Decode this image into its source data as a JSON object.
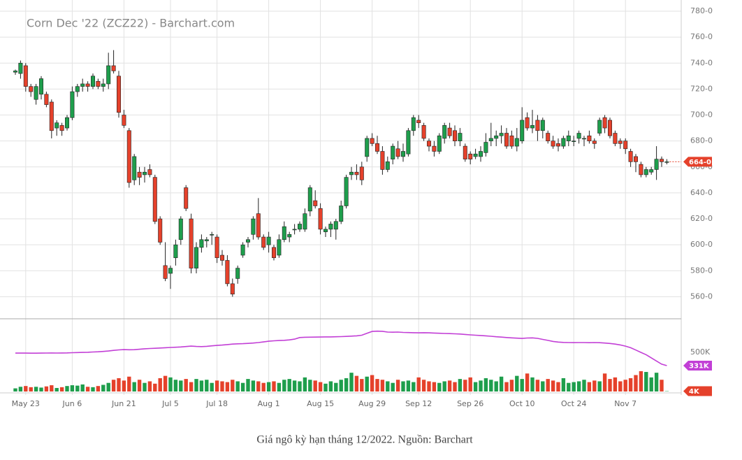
{
  "chart_data": {
    "type": "candlestick",
    "title": "Corn Dec '22 (ZCZ22) - Barchart.com",
    "categories": [
      null,
      null,
      "May 23",
      null,
      null,
      null,
      null,
      null,
      null,
      null,
      null,
      "Jun 6",
      null,
      null,
      null,
      null,
      null,
      null,
      null,
      null,
      null,
      "Jun 21",
      null,
      null,
      null,
      null,
      null,
      null,
      null,
      null,
      "Jul 5",
      null,
      null,
      null,
      null,
      null,
      null,
      null,
      null,
      "Jul 18",
      null,
      null,
      null,
      null,
      null,
      null,
      null,
      null,
      null,
      "Aug 1",
      null,
      null,
      null,
      null,
      null,
      null,
      null,
      null,
      null,
      "Aug 15",
      null,
      null,
      null,
      null,
      null,
      null,
      null,
      null,
      null,
      "Aug 29",
      null,
      null,
      null,
      null,
      null,
      null,
      null,
      null,
      "Sep 12",
      null,
      null,
      null,
      null,
      null,
      null,
      null,
      null,
      null,
      "Sep 26",
      null,
      null,
      null,
      null,
      null,
      null,
      null,
      null,
      null,
      "Oct 10",
      null,
      null,
      null,
      null,
      null,
      null,
      null,
      null,
      null,
      "Oct 24",
      null,
      null,
      null,
      null,
      null,
      null,
      null,
      null,
      null,
      "Nov 7",
      null,
      null,
      null,
      null,
      null,
      null,
      null,
      null
    ],
    "open": [
      733,
      732,
      738,
      722,
      712,
      716,
      716,
      710,
      690,
      692,
      690,
      698,
      718,
      722,
      724,
      722,
      726,
      722,
      724,
      738,
      730,
      700,
      688,
      650,
      656,
      654,
      658,
      652,
      620,
      584,
      578,
      590,
      604,
      644,
      620,
      582,
      598,
      603,
      608,
      606,
      592,
      588,
      570,
      574,
      592,
      602,
      608,
      624,
      606,
      600,
      598,
      592,
      604,
      606,
      612,
      612,
      612,
      626,
      634,
      628,
      610,
      612,
      612,
      618,
      630,
      654,
      656,
      660,
      668,
      682,
      678,
      672,
      658,
      666,
      674,
      668,
      670,
      688,
      696,
      692,
      680,
      676,
      672,
      682,
      690,
      688,
      680,
      676,
      670,
      668,
      668,
      671,
      680,
      682,
      684,
      686,
      684,
      676,
      680,
      698,
      690,
      696,
      688,
      686,
      680,
      678,
      676,
      680,
      680,
      682,
      682,
      684,
      680,
      686,
      698,
      696,
      686,
      680,
      680,
      672,
      668,
      662,
      654,
      656,
      658,
      666,
      664
    ],
    "high": [
      735,
      742,
      740,
      724,
      724,
      730,
      718,
      712,
      696,
      694,
      700,
      722,
      724,
      728,
      726,
      732,
      728,
      728,
      748,
      750,
      734,
      704,
      690,
      670,
      660,
      660,
      662,
      654,
      622,
      602,
      584,
      604,
      622,
      646,
      624,
      602,
      608,
      606,
      610,
      608,
      596,
      592,
      574,
      584,
      602,
      606,
      622,
      636,
      608,
      610,
      600,
      608,
      618,
      610,
      616,
      618,
      628,
      646,
      642,
      632,
      614,
      618,
      620,
      634,
      654,
      660,
      662,
      664,
      684,
      686,
      684,
      676,
      668,
      678,
      680,
      678,
      690,
      700,
      700,
      694,
      682,
      680,
      686,
      694,
      694,
      692,
      690,
      678,
      672,
      674,
      676,
      686,
      694,
      688,
      692,
      690,
      688,
      690,
      706,
      702,
      704,
      700,
      698,
      688,
      684,
      682,
      684,
      688,
      684,
      688,
      684,
      688,
      682,
      698,
      700,
      698,
      688,
      682,
      682,
      674,
      670,
      664,
      660,
      660,
      676,
      668,
      666
    ],
    "low": [
      731,
      728,
      718,
      714,
      708,
      712,
      706,
      682,
      684,
      684,
      688,
      696,
      714,
      718,
      718,
      720,
      720,
      718,
      720,
      732,
      698,
      690,
      644,
      646,
      646,
      648,
      652,
      616,
      600,
      572,
      566,
      584,
      600,
      626,
      578,
      578,
      594,
      598,
      600,
      586,
      584,
      568,
      560,
      570,
      590,
      598,
      604,
      604,
      596,
      594,
      588,
      590,
      602,
      602,
      608,
      610,
      610,
      622,
      628,
      608,
      606,
      606,
      604,
      616,
      628,
      650,
      650,
      646,
      664,
      676,
      670,
      654,
      656,
      662,
      666,
      664,
      668,
      684,
      690,
      680,
      672,
      668,
      670,
      678,
      682,
      676,
      676,
      664,
      662,
      666,
      664,
      668,
      676,
      676,
      678,
      674,
      674,
      672,
      678,
      688,
      686,
      680,
      682,
      678,
      674,
      672,
      674,
      676,
      676,
      678,
      676,
      678,
      674,
      684,
      686,
      682,
      676,
      674,
      670,
      660,
      656,
      652,
      652,
      654,
      650,
      660,
      662
    ],
    "close": [
      734,
      740,
      722,
      718,
      722,
      728,
      708,
      688,
      694,
      688,
      698,
      718,
      722,
      724,
      722,
      730,
      722,
      724,
      738,
      734,
      702,
      692,
      648,
      668,
      652,
      656,
      654,
      618,
      602,
      574,
      582,
      600,
      620,
      628,
      582,
      598,
      604,
      604,
      608,
      590,
      588,
      570,
      562,
      582,
      600,
      604,
      620,
      606,
      598,
      606,
      590,
      604,
      614,
      608,
      612,
      616,
      624,
      644,
      630,
      612,
      612,
      616,
      618,
      630,
      652,
      656,
      654,
      650,
      682,
      678,
      672,
      658,
      664,
      676,
      668,
      672,
      688,
      698,
      694,
      682,
      676,
      672,
      684,
      692,
      684,
      680,
      686,
      666,
      666,
      670,
      672,
      679,
      682,
      684,
      686,
      676,
      676,
      682,
      696,
      690,
      692,
      688,
      696,
      680,
      676,
      676,
      682,
      684,
      680,
      686,
      682,
      680,
      678,
      696,
      690,
      684,
      678,
      678,
      674,
      664,
      664,
      654,
      658,
      658,
      666,
      664,
      664
    ],
    "up_color": "#1e9e4c",
    "down_color": "#e5412b",
    "ylim": [
      543,
      780
    ],
    "yticks": [
      {
        "value": 560,
        "label": "560-0"
      },
      {
        "value": 580,
        "label": "580-0"
      },
      {
        "value": 600,
        "label": "600-0"
      },
      {
        "value": 620,
        "label": "620-0"
      },
      {
        "value": 640,
        "label": "640-0"
      },
      {
        "value": 660,
        "label": "660-0"
      },
      {
        "value": 680,
        "label": "680-0"
      },
      {
        "value": 700,
        "label": "700-0"
      },
      {
        "value": 720,
        "label": "720-0"
      },
      {
        "value": 740,
        "label": "740-0"
      },
      {
        "value": 760,
        "label": "760-0"
      },
      {
        "value": 780,
        "label": "780-0"
      }
    ],
    "price_marker": {
      "value": 664,
      "label": "664-0"
    },
    "volume": [
      40000,
      60000,
      70000,
      55000,
      60000,
      50000,
      65000,
      80000,
      45000,
      55000,
      70000,
      80000,
      75000,
      90000,
      60000,
      55000,
      70000,
      85000,
      110000,
      150000,
      170000,
      140000,
      190000,
      120000,
      150000,
      110000,
      130000,
      100000,
      170000,
      200000,
      180000,
      150000,
      140000,
      160000,
      120000,
      160000,
      140000,
      150000,
      110000,
      140000,
      130000,
      120000,
      150000,
      130000,
      110000,
      160000,
      140000,
      130000,
      110000,
      120000,
      130000,
      110000,
      150000,
      160000,
      140000,
      130000,
      180000,
      150000,
      140000,
      120000,
      100000,
      130000,
      110000,
      150000,
      170000,
      240000,
      200000,
      160000,
      190000,
      210000,
      160000,
      150000,
      130000,
      110000,
      150000,
      130000,
      140000,
      120000,
      180000,
      150000,
      130000,
      120000,
      110000,
      130000,
      140000,
      120000,
      160000,
      150000,
      180000,
      120000,
      140000,
      170000,
      150000,
      130000,
      190000,
      120000,
      150000,
      200000,
      160000,
      230000,
      180000,
      150000,
      130000,
      160000,
      140000,
      120000,
      170000,
      110000,
      120000,
      130000,
      150000,
      120000,
      140000,
      130000,
      230000,
      160000,
      180000,
      130000,
      150000,
      170000,
      210000,
      260000,
      250000,
      180000,
      240000,
      150000,
      4000
    ],
    "open_interest": [
      491000,
      492000,
      491000,
      490000,
      490000,
      491000,
      492000,
      493000,
      492000,
      493000,
      494000,
      496000,
      498000,
      500000,
      502000,
      505000,
      508000,
      512000,
      518000,
      526000,
      532000,
      536000,
      534000,
      535000,
      540000,
      546000,
      550000,
      553000,
      556000,
      560000,
      563000,
      566000,
      570000,
      575000,
      580000,
      576000,
      574000,
      578000,
      584000,
      589000,
      594000,
      600000,
      606000,
      610000,
      612000,
      615000,
      620000,
      626000,
      634000,
      643000,
      648000,
      652000,
      655000,
      660000,
      670000,
      690000,
      694000,
      695000,
      696000,
      697000,
      698000,
      698000,
      700000,
      702000,
      705000,
      708000,
      712000,
      720000,
      745000,
      768000,
      772000,
      770000,
      760000,
      758000,
      760000,
      756000,
      754000,
      752000,
      750000,
      752000,
      750000,
      748000,
      745000,
      742000,
      740000,
      738000,
      735000,
      730000,
      724000,
      720000,
      716000,
      712000,
      706000,
      700000,
      696000,
      690000,
      686000,
      682000,
      679000,
      684000,
      686000,
      680000,
      666000,
      654000,
      640000,
      632000,
      628000,
      626000,
      625000,
      626000,
      626000,
      624000,
      626000,
      624000,
      620000,
      614000,
      606000,
      596000,
      580000,
      560000,
      530000,
      500000,
      470000,
      430000,
      390000,
      350000,
      331000
    ],
    "open_interest_color": "#c23fd6",
    "vlim": [
      0,
      930000
    ],
    "vticks": [
      {
        "value": 500000,
        "label": "500K"
      }
    ],
    "open_interest_marker": {
      "value": 331000,
      "label": "331K"
    },
    "volume_marker": {
      "value": 4000,
      "label": "4K"
    },
    "grid": true
  },
  "caption": "Giá ngô kỳ hạn tháng 12/2022. Nguồn: Barchart"
}
